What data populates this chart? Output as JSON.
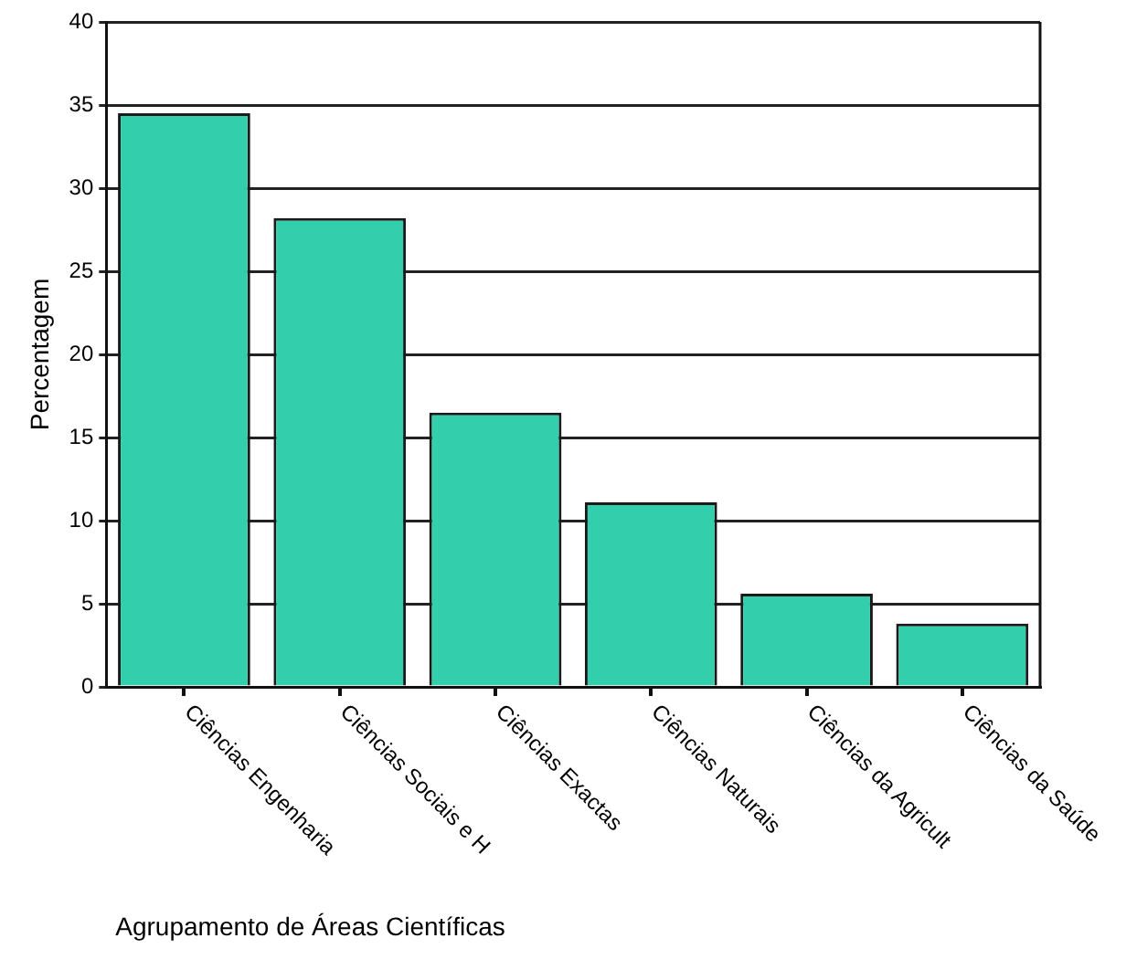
{
  "chart_data": {
    "type": "bar",
    "xlabel": "Agrupamento de Áreas Científicas",
    "ylabel": "Percentagem",
    "categories": [
      "Ciências Engenharia",
      "Ciências Sociais e H",
      "Ciências Exactas",
      "Ciências Naturais",
      "Ciências da Agricult",
      "Ciências da Saúde"
    ],
    "values": [
      34.5,
      28.2,
      16.5,
      11.1,
      5.6,
      3.8
    ],
    "color": "#33cfac",
    "ylim": [
      0,
      40
    ],
    "yticks": [
      0,
      5,
      10,
      15,
      20,
      25,
      30,
      35,
      40
    ],
    "grid": "y",
    "legend": false
  }
}
